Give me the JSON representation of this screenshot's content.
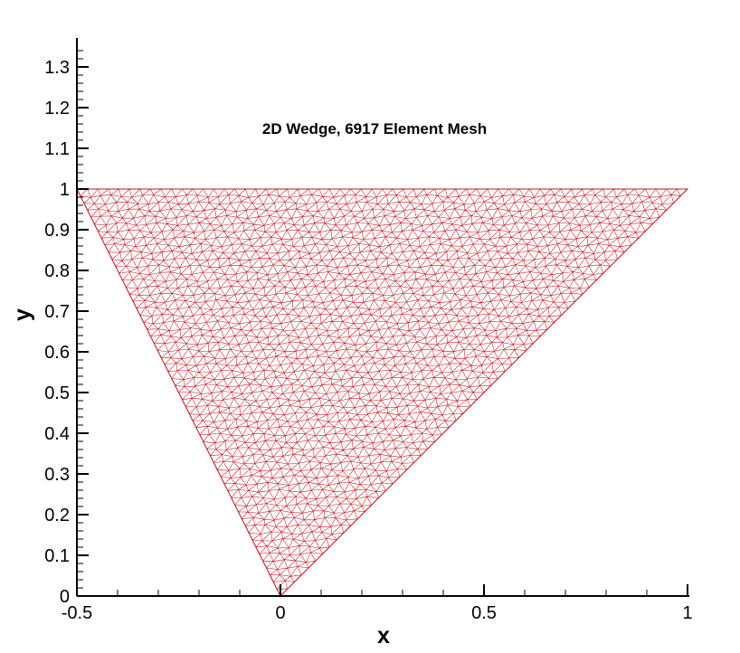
{
  "title": "2D Wedge, 6917 Element Mesh",
  "xlabel": "x",
  "ylabel": "y",
  "colors": {
    "mesh": "#c0141c",
    "axis": "#000000",
    "background": "#ffffff"
  },
  "chart_data": {
    "type": "scatter",
    "title": "2D Wedge, 6917 Element Mesh",
    "xlabel": "x",
    "ylabel": "y",
    "xlim": [
      -0.5,
      1.0
    ],
    "ylim": [
      0,
      1.37
    ],
    "x_ticks": [
      "-0.5",
      "0",
      "0.5",
      "1"
    ],
    "y_ticks": [
      "0",
      "0.1",
      "0.2",
      "0.3",
      "0.4",
      "0.5",
      "0.6",
      "0.7",
      "0.8",
      "0.9",
      "1",
      "1.1",
      "1.2",
      "1.3"
    ],
    "grid": false,
    "element_count": 6917,
    "domain_vertices": [
      [
        -0.5,
        1.0
      ],
      [
        1.0,
        1.0
      ],
      [
        0.0,
        0.0
      ]
    ]
  }
}
